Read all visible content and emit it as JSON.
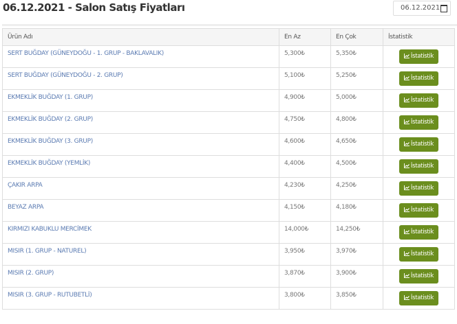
{
  "header": {
    "title": "06.12.2021 - Salon Satış Fiyatları",
    "date_value": "06.12.2021"
  },
  "columns": [
    "Ürün Adı",
    "En Az",
    "En Çok",
    "İstatistik"
  ],
  "button_label": "İstatistik",
  "currency": "₺",
  "accent_color": "#6b8e1e",
  "rows": [
    {
      "name": "SERT BUĞDAY (GÜNEYDOĞU - 1. GRUP - BAKLAVALIK)",
      "min": "5,300₺",
      "max": "5,350₺"
    },
    {
      "name": "SERT BUĞDAY (GÜNEYDOĞU - 2. GRUP)",
      "min": "5,100₺",
      "max": "5,250₺"
    },
    {
      "name": "EKMEKLİK BUĞDAY (1. GRUP)",
      "min": "4,900₺",
      "max": "5,000₺"
    },
    {
      "name": "EKMEKLİK BUĞDAY (2. GRUP)",
      "min": "4,750₺",
      "max": "4,800₺"
    },
    {
      "name": "EKMEKLİK BUĞDAY (3. GRUP)",
      "min": "4,600₺",
      "max": "4,650₺"
    },
    {
      "name": "EKMEKLİK BUĞDAY (YEMLİK)",
      "min": "4,400₺",
      "max": "4,500₺"
    },
    {
      "name": "ÇAKIR ARPA",
      "min": "4,230₺",
      "max": "4,250₺"
    },
    {
      "name": "BEYAZ ARPA",
      "min": "4,150₺",
      "max": "4,180₺"
    },
    {
      "name": "KIRMIZI KABUKLU MERCİMEK",
      "min": "14,000₺",
      "max": "14,250₺"
    },
    {
      "name": "MISIR (1. GRUP - NATUREL)",
      "min": "3,950₺",
      "max": "3,970₺"
    },
    {
      "name": "MISIR (2. GRUP)",
      "min": "3,870₺",
      "max": "3,900₺"
    },
    {
      "name": "MISIR (3. GRUP - RUTUBETLİ)",
      "min": "3,800₺",
      "max": "3,850₺"
    }
  ]
}
